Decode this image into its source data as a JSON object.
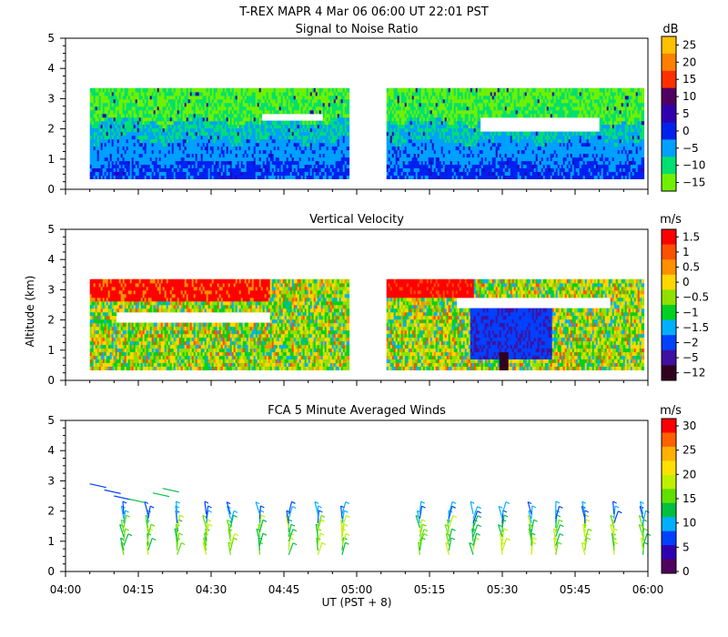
{
  "header": {
    "title": "T-REX   MAPR   4 Mar 06   06:00 UT   22:01   PST"
  },
  "x_axis": {
    "label": "UT  (PST + 8)",
    "tick_labels": [
      "04:00",
      "04:15",
      "04:30",
      "04:45",
      "05:00",
      "05:15",
      "05:30",
      "05:45",
      "06:00"
    ],
    "range_minutes": [
      0,
      120
    ]
  },
  "y_axis_shared_label": "Altitude (km)",
  "chart_data": [
    {
      "type": "heatmap",
      "title": "Signal to Noise Ratio",
      "ylabel": "",
      "ylim": [
        0,
        5
      ],
      "yticks": [
        "0",
        "1",
        "2",
        "3",
        "4",
        "5"
      ],
      "data_gap_minutes": [
        59,
        66
      ],
      "data_altitude_km": [
        0.35,
        3.35
      ],
      "colorbar": {
        "unit": "dB",
        "labels": [
          "25",
          "20",
          "15",
          "10",
          "5",
          "0",
          "−5",
          "−10",
          "−15"
        ],
        "colors": [
          "#ffc000",
          "#ff8000",
          "#ff3000",
          "#500060",
          "#3000b0",
          "#0020f0",
          "#00a0ff",
          "#00e070",
          "#70f000"
        ]
      }
    },
    {
      "type": "heatmap",
      "title": "Vertical Velocity",
      "ylabel": "Altitude (km)",
      "ylim": [
        0,
        5
      ],
      "yticks": [
        "0",
        "1",
        "2",
        "3",
        "4",
        "5"
      ],
      "data_gap_minutes": [
        59,
        66
      ],
      "data_altitude_km": [
        0.35,
        3.35
      ],
      "colorbar": {
        "unit": "m/s",
        "labels": [
          "1.5",
          "1",
          "0.5",
          "0",
          "−0.5",
          "−1",
          "−1.5",
          "−2",
          "−5",
          "−12"
        ],
        "colors": [
          "#ff0000",
          "#ff5000",
          "#ff9000",
          "#ffd800",
          "#90e000",
          "#00d020",
          "#00b0ff",
          "#0040ff",
          "#4010a0",
          "#300020"
        ]
      }
    },
    {
      "type": "scatter",
      "title": "FCA 5 Minute Averaged Winds",
      "ylabel": "",
      "ylim": [
        0,
        5
      ],
      "yticks": [
        "0",
        "1",
        "2",
        "3",
        "4",
        "5"
      ],
      "barb_times_minutes": [
        12,
        17,
        23,
        29,
        34,
        40,
        46,
        52,
        57,
        73,
        79,
        84,
        90,
        96,
        101,
        107,
        113,
        119
      ],
      "colorbar": {
        "unit": "m/s",
        "labels": [
          "30",
          "25",
          "20",
          "15",
          "10",
          "5",
          "0"
        ],
        "colors": [
          "#ff0000",
          "#ff6000",
          "#ffb000",
          "#ffe000",
          "#c0f000",
          "#60e000",
          "#00c040",
          "#00b0ff",
          "#0040ff",
          "#3000b0",
          "#500060"
        ]
      }
    }
  ]
}
